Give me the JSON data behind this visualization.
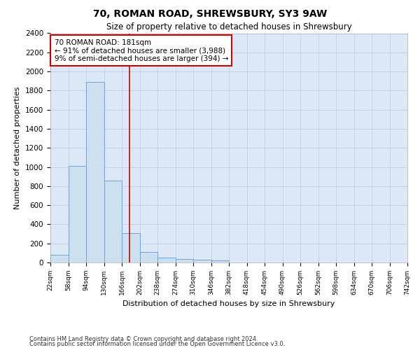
{
  "title1": "70, ROMAN ROAD, SHREWSBURY, SY3 9AW",
  "title2": "Size of property relative to detached houses in Shrewsbury",
  "xlabel": "Distribution of detached houses by size in Shrewsbury",
  "ylabel": "Number of detached properties",
  "annotation_line1": "70 ROMAN ROAD: 181sqm",
  "annotation_line2": "← 91% of detached houses are smaller (3,988)",
  "annotation_line3": "9% of semi-detached houses are larger (394) →",
  "property_size": 181,
  "footnote1": "Contains HM Land Registry data © Crown copyright and database right 2024.",
  "footnote2": "Contains public sector information licensed under the Open Government Licence v3.0.",
  "bar_color": "#cce0f0",
  "bar_edge_color": "#5b9bd5",
  "red_line_color": "#cc0000",
  "annotation_box_color": "#cc0000",
  "bg_color": "#ffffff",
  "plot_bg_color": "#dce8f5",
  "grid_color": "#c0cfe0",
  "bin_edges": [
    22,
    58,
    94,
    130,
    166,
    202,
    238,
    274,
    310,
    346,
    382,
    418,
    454,
    490,
    526,
    562,
    598,
    634,
    670,
    706,
    742
  ],
  "bin_labels": [
    "22sqm",
    "58sqm",
    "94sqm",
    "130sqm",
    "166sqm",
    "202sqm",
    "238sqm",
    "274sqm",
    "310sqm",
    "346sqm",
    "382sqm",
    "418sqm",
    "454sqm",
    "490sqm",
    "526sqm",
    "562sqm",
    "598sqm",
    "634sqm",
    "670sqm",
    "706sqm",
    "742sqm"
  ],
  "bar_heights": [
    80,
    1010,
    1890,
    860,
    310,
    110,
    50,
    40,
    30,
    20,
    0,
    0,
    0,
    0,
    0,
    0,
    0,
    0,
    0,
    0
  ],
  "ylim": [
    0,
    2400
  ],
  "yticks": [
    0,
    200,
    400,
    600,
    800,
    1000,
    1200,
    1400,
    1600,
    1800,
    2000,
    2200,
    2400
  ]
}
